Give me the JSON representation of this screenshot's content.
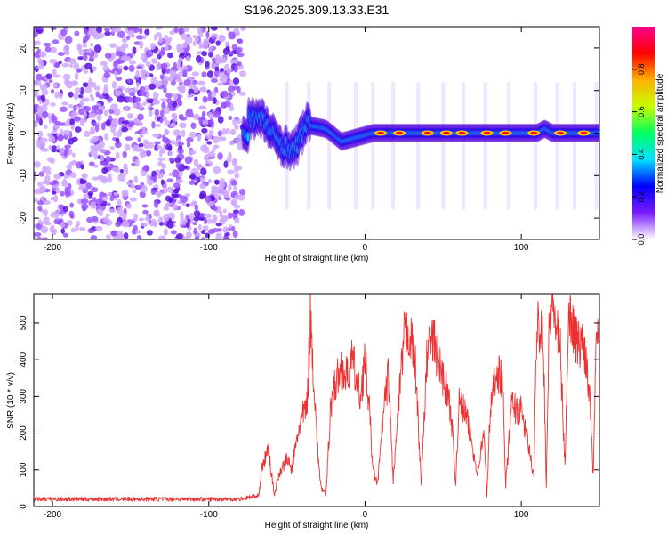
{
  "title": "S196.2025.309.13.33.E31",
  "chart_data": [
    {
      "type": "heatmap",
      "xlabel": "Height of straight line (km)",
      "ylabel": "Frequency (Hz)",
      "xlim": [
        -212,
        150
      ],
      "ylim": [
        -25,
        25
      ],
      "xticks": [
        -200,
        -100,
        0,
        100
      ],
      "yticks": [
        -20,
        -10,
        0,
        10,
        20
      ],
      "colorbar": {
        "label": "Normalized spectral amplitude",
        "range": [
          0,
          1
        ],
        "ticks": [
          "0.0",
          "0.2",
          "0.4",
          "0.6",
          "0.8"
        ],
        "colors": [
          "#ffffff",
          "#7a1cff",
          "#0000ff",
          "#00e0ff",
          "#00ff60",
          "#c8ff00",
          "#ffb000",
          "#ff0000",
          "#ff0090"
        ]
      },
      "features": {
        "noise_region_x": [
          -212,
          -78
        ],
        "turbulent_signal_x": [
          -78,
          -35
        ],
        "tone_x": [
          -35,
          150
        ],
        "tone_freq_hz": [
          {
            "x": -75,
            "f": 4
          },
          {
            "x": -65,
            "f": 3
          },
          {
            "x": -58,
            "f": -1
          },
          {
            "x": -52,
            "f": -3
          },
          {
            "x": -45,
            "f": -4
          },
          {
            "x": -38,
            "f": 2
          },
          {
            "x": -25,
            "f": 1
          },
          {
            "x": -15,
            "f": -2
          },
          {
            "x": -5,
            "f": -1
          },
          {
            "x": 5,
            "f": 0
          },
          {
            "x": 110,
            "f": 0
          },
          {
            "x": 115,
            "f": 1
          },
          {
            "x": 120,
            "f": 0
          },
          {
            "x": 150,
            "f": 0
          }
        ],
        "peak_intensity_x": [
          10,
          22,
          40,
          52,
          62,
          78,
          90,
          108,
          125,
          140
        ]
      }
    },
    {
      "type": "line",
      "xlabel": "Height of straight line (km)",
      "ylabel": "SNR (10 * v/v)",
      "xlim": [
        -212,
        150
      ],
      "ylim": [
        0,
        580
      ],
      "xticks": [
        -200,
        -100,
        0,
        100
      ],
      "yticks": [
        0,
        100,
        200,
        300,
        400,
        500
      ],
      "line_color": "#ee3030",
      "series": [
        {
          "name": "SNR",
          "x": [
            -212,
            -80,
            -68,
            -66,
            -62,
            -58,
            -55,
            -50,
            -47,
            -42,
            -37,
            -35,
            -30,
            -28,
            -25,
            -22,
            -20,
            -15,
            -12,
            -8,
            -5,
            -3,
            0,
            3,
            5,
            8,
            12,
            15,
            18,
            22,
            25,
            28,
            32,
            36,
            40,
            44,
            48,
            52,
            55,
            58,
            60,
            64,
            68,
            72,
            76,
            78,
            80,
            84,
            88,
            90,
            94,
            98,
            100,
            104,
            108,
            110,
            114,
            116,
            118,
            120,
            122,
            125,
            128,
            130,
            132,
            136,
            140,
            144,
            146,
            148,
            150
          ],
          "y": [
            20,
            20,
            30,
            100,
            160,
            30,
            90,
            130,
            100,
            220,
            280,
            520,
            130,
            50,
            30,
            280,
            320,
            380,
            350,
            400,
            330,
            300,
            400,
            250,
            100,
            60,
            260,
            360,
            70,
            300,
            460,
            480,
            400,
            60,
            440,
            450,
            380,
            320,
            260,
            60,
            280,
            260,
            180,
            90,
            200,
            30,
            250,
            380,
            340,
            60,
            280,
            260,
            260,
            180,
            80,
            510,
            480,
            60,
            520,
            560,
            500,
            420,
            100,
            520,
            510,
            440,
            450,
            300,
            80,
            520,
            480
          ]
        }
      ]
    }
  ]
}
